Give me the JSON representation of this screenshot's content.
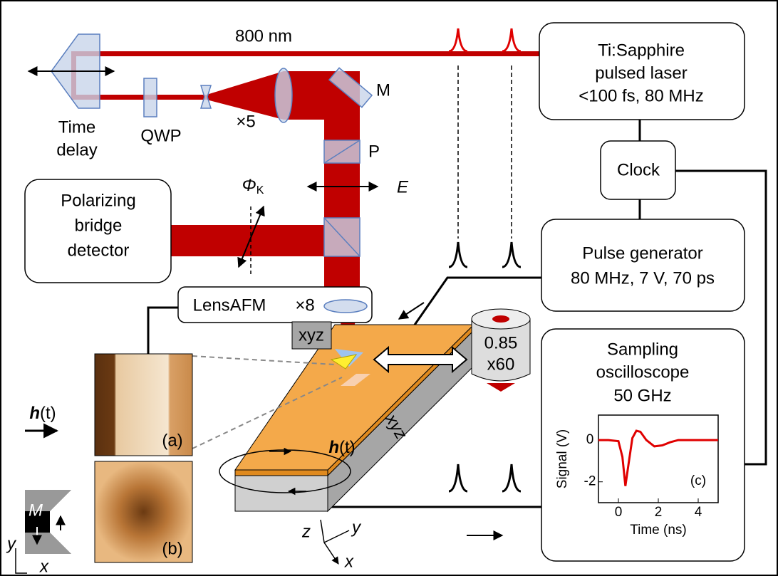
{
  "beam": {
    "wavelength": "800 nm"
  },
  "laser": {
    "lines": [
      "Ti:Sapphire",
      "pulsed laser",
      "<100 fs, 80 MHz"
    ]
  },
  "optics": {
    "time_delay": [
      "Time",
      "delay"
    ],
    "qwp": "QWP",
    "expander": "×5",
    "mirror": "M",
    "polarizer": "P",
    "field": "E",
    "kerr_symbol": "Φ",
    "kerr_subscript": "K"
  },
  "clock": "Clock",
  "detector": {
    "lines": [
      "Polarizing",
      "bridge",
      "detector"
    ]
  },
  "pulse_generator": {
    "lines": [
      "Pulse generator",
      "80 MHz, 7 V, 70 ps"
    ]
  },
  "lens_afm": {
    "name": "LensAFM",
    "magnification": "×8"
  },
  "stage": {
    "afm_scanner": "xyz",
    "sample_stage": "xyz"
  },
  "objective": {
    "na": "0.85",
    "magnification": "x60"
  },
  "oscilloscope": {
    "lines": [
      "Sampling",
      "oscilloscope",
      "50 GHz"
    ]
  },
  "field_left": {
    "symbol": "h",
    "arg": "(t)"
  },
  "field_stage": {
    "symbol": "h",
    "arg": "(t)"
  },
  "images": [
    "(a)",
    "(b)"
  ],
  "domain": {
    "magnetization": "M"
  },
  "axes_2d": [
    "y",
    "x"
  ],
  "axes_3d": [
    "z",
    "y",
    "x"
  ],
  "inset": {
    "label": "(c)",
    "ylabel": "Signal (V)",
    "xlabel": "Time (ns)",
    "xlim": [
      -1,
      5
    ],
    "ylim": [
      -3,
      1.2
    ],
    "xticks": [
      0,
      2,
      4
    ],
    "yticks": [
      0,
      -2
    ],
    "x": [
      -1,
      -0.5,
      0,
      0.2,
      0.35,
      0.5,
      0.7,
      0.9,
      1.1,
      1.4,
      1.8,
      2.2,
      2.6,
      3,
      4,
      5
    ],
    "values": [
      0,
      0,
      -0.05,
      -0.8,
      -2.2,
      -1.2,
      0.1,
      0.45,
      0.4,
      0.0,
      -0.3,
      -0.25,
      -0.1,
      0,
      0,
      0
    ]
  }
}
